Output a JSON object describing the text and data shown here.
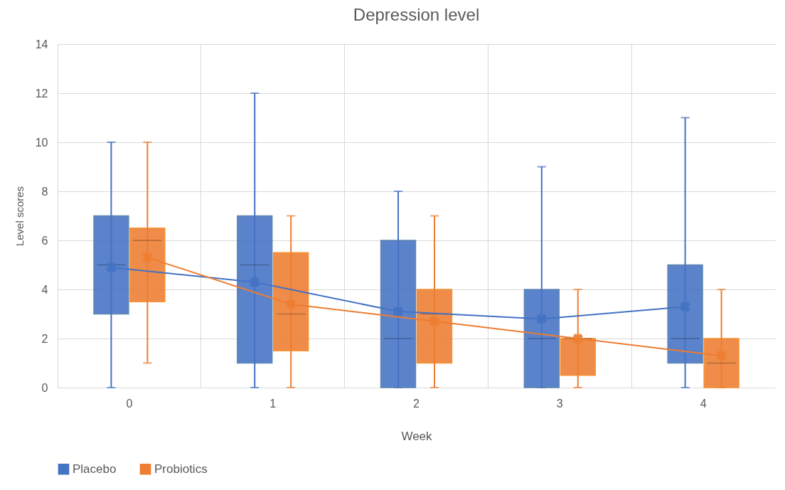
{
  "chart_data": {
    "type": "box",
    "title": "Depression level",
    "xlabel": "Week",
    "ylabel": "Level scores",
    "categories": [
      "0",
      "1",
      "2",
      "3",
      "4"
    ],
    "ylim": [
      0,
      14
    ],
    "yticks": [
      0,
      2,
      4,
      6,
      8,
      10,
      12,
      14
    ],
    "grid": true,
    "legend": "bottom",
    "series": [
      {
        "name": "Placebo",
        "color": "#4472c4",
        "boxes": [
          {
            "low": 0,
            "q1": 3,
            "median": 5,
            "q3": 7,
            "high": 10,
            "mean": 4.9
          },
          {
            "low": 0,
            "q1": 1,
            "median": 5,
            "q3": 7,
            "high": 12,
            "mean": 4.3
          },
          {
            "low": 0,
            "q1": 0,
            "median": 2,
            "q3": 6,
            "high": 8,
            "mean": 3.1
          },
          {
            "low": 0,
            "q1": 0,
            "median": 2,
            "q3": 4,
            "high": 9,
            "mean": 2.8
          },
          {
            "low": 0,
            "q1": 1,
            "median": 2,
            "q3": 5,
            "high": 11,
            "mean": 3.3
          }
        ]
      },
      {
        "name": "Probiotics",
        "color": "#ed7d31",
        "boxes": [
          {
            "low": 1,
            "q1": 3.5,
            "median": 6,
            "q3": 6.5,
            "high": 10,
            "mean": 5.3
          },
          {
            "low": 0,
            "q1": 1.5,
            "median": 3,
            "q3": 5.5,
            "high": 7,
            "mean": 3.4
          },
          {
            "low": 0,
            "q1": 1,
            "median": 3,
            "q3": 4,
            "high": 7,
            "mean": 2.7
          },
          {
            "low": 0,
            "q1": 0.5,
            "median": 2,
            "q3": 2,
            "high": 4,
            "mean": 2.0
          },
          {
            "low": 0,
            "q1": 0,
            "median": 1,
            "q3": 2,
            "high": 4,
            "mean": 1.3
          }
        ]
      },
      {
        "type": "line",
        "color": "#4472c4",
        "values": [
          4.9,
          4.3,
          3.1,
          2.8,
          3.3
        ]
      },
      {
        "type": "line",
        "color": "#ed7d31",
        "values": [
          5.3,
          3.4,
          2.7,
          2.0,
          1.3
        ]
      }
    ]
  }
}
